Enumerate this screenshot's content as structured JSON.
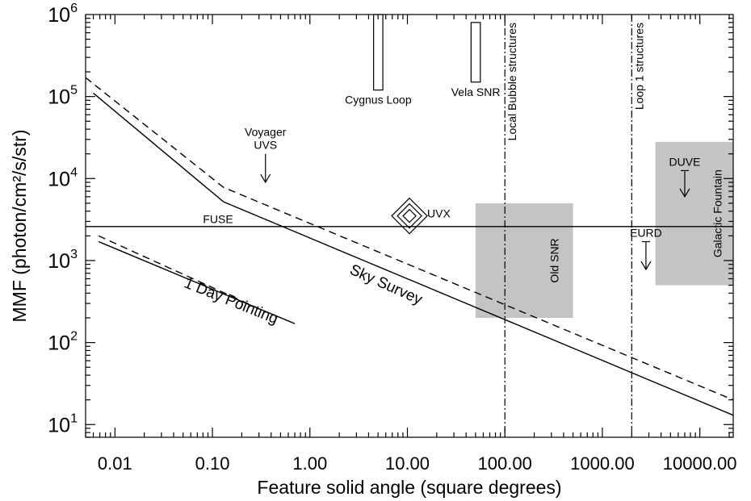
{
  "chart_data": {
    "type": "line",
    "title": "",
    "xlabel": "Feature solid angle (square degrees)",
    "ylabel": "MMF (photon/cm²/s/str)",
    "x_scale": "log",
    "y_scale": "log",
    "xlim": [
      0.005,
      22000
    ],
    "ylim": [
      7,
      1000000
    ],
    "x_ticks": [
      0.01,
      0.1,
      1,
      10,
      100,
      1000,
      10000
    ],
    "x_tick_labels": [
      "0.01",
      "0.10",
      "1.00",
      "10.00",
      "100.00",
      "1000.00",
      "10000.00"
    ],
    "y_ticks": [
      {
        "value": 10,
        "base": "10",
        "exp": "1"
      },
      {
        "value": 100,
        "base": "10",
        "exp": "2"
      },
      {
        "value": 1000,
        "base": "10",
        "exp": "3"
      },
      {
        "value": 10000,
        "base": "10",
        "exp": "4"
      },
      {
        "value": 100000,
        "base": "10",
        "exp": "5"
      },
      {
        "value": 1000000,
        "base": "10",
        "exp": "6"
      }
    ],
    "grid": false,
    "series": [
      {
        "name": "Sky Survey",
        "style": "solid",
        "x": [
          0.006,
          0.13,
          22000
        ],
        "y": [
          110000,
          5200,
          13
        ]
      },
      {
        "style": "dashed",
        "x": [
          0.005,
          0.13,
          22000
        ],
        "y": [
          170000,
          7800,
          20
        ]
      },
      {
        "name": "1 Day Pointing",
        "style": "solid",
        "x": [
          0.0068,
          0.7
        ],
        "y": [
          1700,
          170
        ]
      },
      {
        "style": "dashed",
        "x": [
          0.0068,
          0.32
        ],
        "y": [
          2000,
          250
        ]
      },
      {
        "name": "FUSE",
        "style": "solid",
        "x": [
          0.005,
          22000
        ],
        "y": [
          2600,
          2600
        ]
      }
    ],
    "vertical_lines": [
      {
        "label": "Local Bubble structures",
        "x": 100
      },
      {
        "label": "Loop 1 structures",
        "x": 2000
      }
    ],
    "regions": [
      {
        "label": "Old SNR",
        "x": [
          50,
          500
        ],
        "y": [
          200,
          5000
        ]
      },
      {
        "label": "Galactic Fountain",
        "x": [
          3500,
          22000
        ],
        "y": [
          500,
          28000
        ]
      }
    ],
    "bars": [
      {
        "label": "Cygnus Loop",
        "x": [
          4.5,
          5.6
        ],
        "y": [
          120000,
          1000000
        ]
      },
      {
        "label": "Vela SNR",
        "x": [
          45,
          56
        ],
        "y": [
          150000,
          800000
        ]
      }
    ],
    "upper_limits": [
      {
        "label_lines": [
          "Voyager",
          "UVS"
        ],
        "x": 0.35,
        "y": 20000,
        "y_end": 9000,
        "cap": false
      },
      {
        "label_lines": [
          "DUVE"
        ],
        "x": 7000,
        "y": 12500,
        "y_end": 6000,
        "cap": true
      },
      {
        "label_lines": [
          "EURD"
        ],
        "x": 2800,
        "y": 1700,
        "y_end": 780,
        "cap": true
      }
    ],
    "diamond": {
      "label": "UVX",
      "x": 10.5,
      "y": 3500
    },
    "annotations": [
      {
        "text": "FUSE",
        "x": 0.08,
        "y": 2850
      },
      {
        "text": "Sky Survey",
        "x": 2.5,
        "y": 700,
        "angle": 24
      },
      {
        "text": "1 Day Pointing",
        "x": 0.05,
        "y": 480,
        "angle": 22
      }
    ]
  }
}
